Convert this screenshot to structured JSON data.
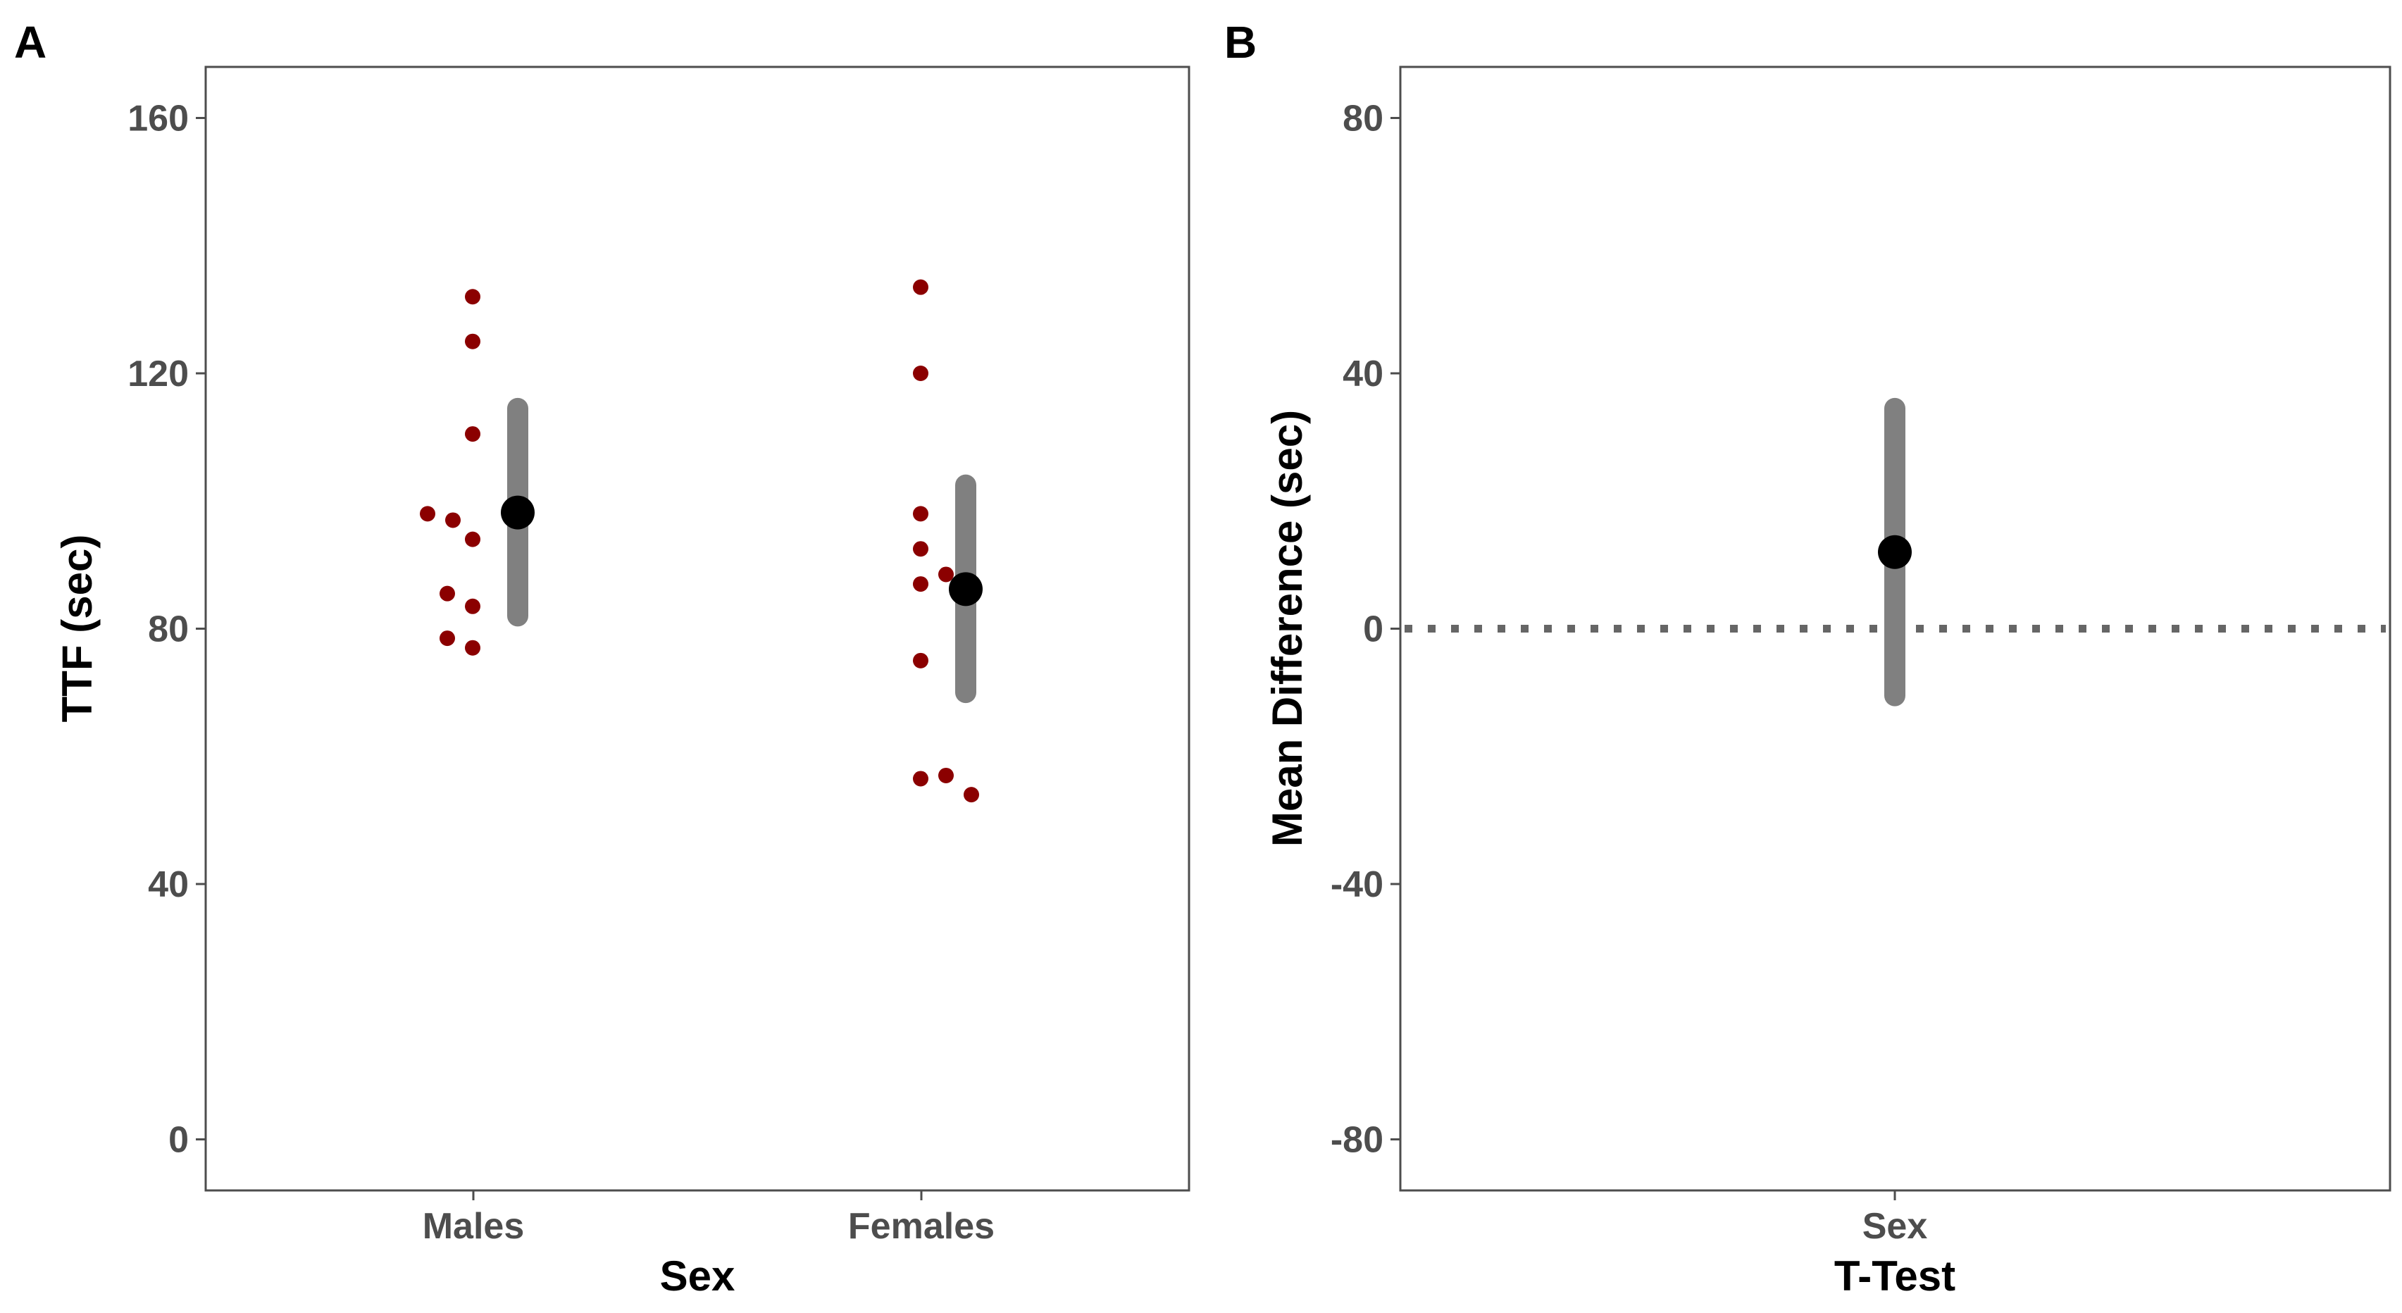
{
  "chart_data": [
    {
      "panel": "A",
      "type": "scatter",
      "xlabel": "Sex",
      "ylabel": "TTF (sec)",
      "categories": [
        "Males",
        "Females"
      ],
      "ylim": [
        -8,
        168
      ],
      "yticks": [
        0,
        40,
        80,
        120,
        160
      ],
      "grid": false,
      "points": {
        "color": "#8b0000",
        "series": [
          {
            "category": "Males",
            "values": [
              132,
              125,
              110.5,
              98,
              97,
              94,
              85.5,
              83.5,
              78.5,
              77
            ]
          },
          {
            "category": "Females",
            "values": [
              133.5,
              120,
              98,
              92.5,
              88.5,
              87,
              75,
              57,
              56.5,
              54
            ]
          }
        ]
      },
      "summary": {
        "mean_color": "#000000",
        "ci_color": "#808080",
        "series": [
          {
            "category": "Males",
            "mean": 98.2,
            "ci_low": 82,
            "ci_high": 114.5
          },
          {
            "category": "Females",
            "mean": 86.2,
            "ci_low": 70,
            "ci_high": 102.5
          }
        ]
      }
    },
    {
      "panel": "B",
      "type": "scatter",
      "xlabel": "T-Test",
      "ylabel": "Mean Difference (sec)",
      "categories": [
        "Sex"
      ],
      "ylim": [
        -88,
        88
      ],
      "yticks": [
        -80,
        -40,
        0,
        40,
        80
      ],
      "yticklabels": [
        "-80",
        "-40",
        "0",
        "40",
        "80"
      ],
      "grid": false,
      "reference_line": {
        "y": 0,
        "style": "dotted",
        "color": "#666666"
      },
      "summary": {
        "mean_color": "#000000",
        "ci_color": "#808080",
        "series": [
          {
            "category": "Sex",
            "mean": 12,
            "ci_low": -10.5,
            "ci_high": 34.5
          }
        ]
      }
    }
  ]
}
